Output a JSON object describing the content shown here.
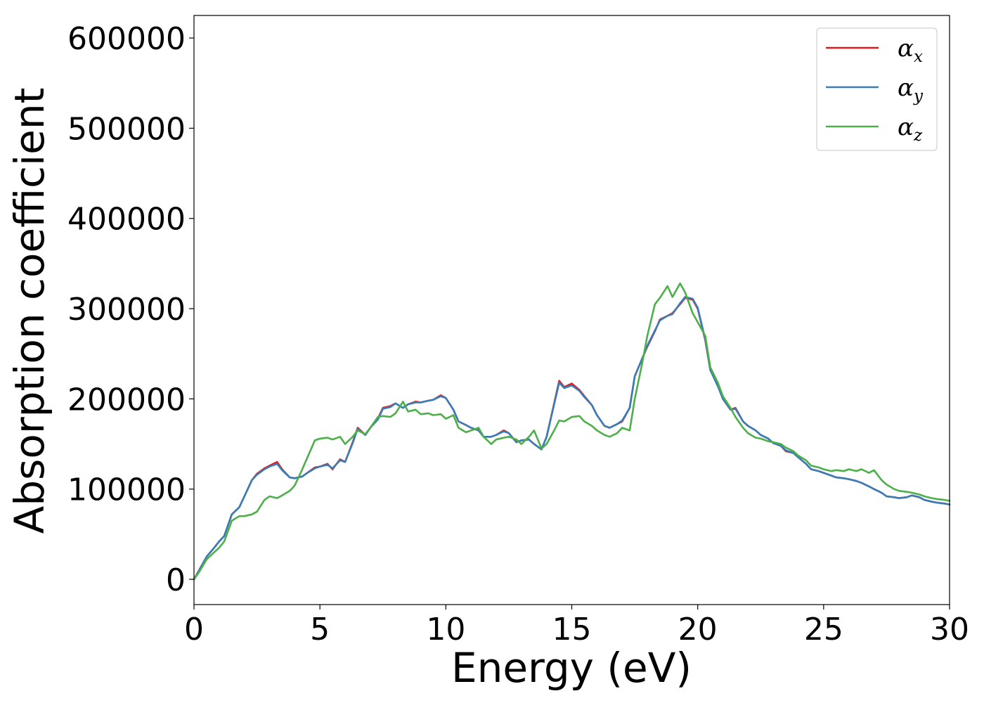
{
  "chart_data": {
    "type": "line",
    "xlabel": "Energy (eV)",
    "ylabel": "Absorption coefficient",
    "xlim": [
      0,
      30
    ],
    "ylim": [
      -28000,
      625000
    ],
    "xticks": [
      0,
      5,
      10,
      15,
      20,
      25,
      30
    ],
    "yticks": [
      0,
      100000,
      200000,
      300000,
      400000,
      500000,
      600000
    ],
    "grid": false,
    "legend_position": "top-right",
    "series": [
      {
        "name": "α_x",
        "symbol": "α",
        "subscript": "x",
        "color": "#e41a1c",
        "x": [
          0,
          0.2,
          0.5,
          0.8,
          1.0,
          1.2,
          1.5,
          1.8,
          2.0,
          2.3,
          2.5,
          2.8,
          3.0,
          3.3,
          3.5,
          3.8,
          4.0,
          4.3,
          4.5,
          4.8,
          5.0,
          5.3,
          5.5,
          5.8,
          6.0,
          6.3,
          6.5,
          6.8,
          7.0,
          7.3,
          7.5,
          7.8,
          8.0,
          8.3,
          8.5,
          8.8,
          9.0,
          9.3,
          9.5,
          9.8,
          10.0,
          10.3,
          10.5,
          10.8,
          11.0,
          11.3,
          11.5,
          11.8,
          12.0,
          12.3,
          12.5,
          12.8,
          13.0,
          13.3,
          13.5,
          13.8,
          14.0,
          14.3,
          14.5,
          14.7,
          15.0,
          15.3,
          15.5,
          15.8,
          16.0,
          16.3,
          16.5,
          16.8,
          17.0,
          17.3,
          17.5,
          17.8,
          18.0,
          18.3,
          18.5,
          18.8,
          19.0,
          19.3,
          19.5,
          19.8,
          20.0,
          20.3,
          20.5,
          20.8,
          21.0,
          21.3,
          21.5,
          21.8,
          22.0,
          22.3,
          22.5,
          22.8,
          23.0,
          23.3,
          23.5,
          23.8,
          24.0,
          24.3,
          24.5,
          24.8,
          25.0,
          25.3,
          25.5,
          25.8,
          26.0,
          26.3,
          26.5,
          26.8,
          27.0,
          27.3,
          27.5,
          27.8,
          28.0,
          28.3,
          28.5,
          28.8,
          29.0,
          29.3,
          29.5,
          29.8,
          30.0
        ],
        "y": [
          0,
          10000,
          25000,
          35000,
          42000,
          48000,
          72000,
          80000,
          92000,
          110000,
          117000,
          123000,
          126000,
          130000,
          122000,
          113000,
          112000,
          114000,
          118000,
          124000,
          125000,
          128000,
          122000,
          133000,
          130000,
          152000,
          168000,
          160000,
          168000,
          178000,
          190000,
          192000,
          195000,
          190000,
          194000,
          197000,
          196000,
          198000,
          199000,
          204000,
          201000,
          188000,
          175000,
          171000,
          168000,
          165000,
          158000,
          158000,
          160000,
          165000,
          162000,
          152000,
          154000,
          155000,
          150000,
          144000,
          158000,
          195000,
          220000,
          213000,
          217000,
          210000,
          203000,
          193000,
          182000,
          170000,
          168000,
          172000,
          175000,
          190000,
          225000,
          245000,
          258000,
          275000,
          288000,
          292000,
          295000,
          305000,
          312000,
          310000,
          300000,
          265000,
          232000,
          215000,
          200000,
          188000,
          190000,
          175000,
          170000,
          165000,
          160000,
          156000,
          151000,
          148000,
          142000,
          140000,
          135000,
          128000,
          122000,
          120000,
          118000,
          115000,
          113000,
          112000,
          111000,
          109000,
          107000,
          103000,
          100000,
          96000,
          92000,
          91000,
          90000,
          91000,
          93000,
          91000,
          88000,
          86000,
          85000,
          84000,
          83000
        ]
      },
      {
        "name": "α_y",
        "symbol": "α",
        "subscript": "y",
        "color": "#377eb8",
        "x": [
          0,
          0.2,
          0.5,
          0.8,
          1.0,
          1.2,
          1.5,
          1.8,
          2.0,
          2.3,
          2.5,
          2.8,
          3.0,
          3.3,
          3.5,
          3.8,
          4.0,
          4.3,
          4.5,
          4.8,
          5.0,
          5.3,
          5.5,
          5.8,
          6.0,
          6.3,
          6.5,
          6.8,
          7.0,
          7.3,
          7.5,
          7.8,
          8.0,
          8.3,
          8.5,
          8.8,
          9.0,
          9.3,
          9.5,
          9.8,
          10.0,
          10.3,
          10.5,
          10.8,
          11.0,
          11.3,
          11.5,
          11.8,
          12.0,
          12.3,
          12.5,
          12.8,
          13.0,
          13.3,
          13.5,
          13.8,
          14.0,
          14.3,
          14.5,
          14.7,
          15.0,
          15.3,
          15.5,
          15.8,
          16.0,
          16.3,
          16.5,
          16.8,
          17.0,
          17.3,
          17.5,
          17.8,
          18.0,
          18.3,
          18.5,
          18.8,
          19.0,
          19.3,
          19.5,
          19.8,
          20.0,
          20.3,
          20.5,
          20.8,
          21.0,
          21.3,
          21.5,
          21.8,
          22.0,
          22.3,
          22.5,
          22.8,
          23.0,
          23.3,
          23.5,
          23.8,
          24.0,
          24.3,
          24.5,
          24.8,
          25.0,
          25.3,
          25.5,
          25.8,
          26.0,
          26.3,
          26.5,
          26.8,
          27.0,
          27.3,
          27.5,
          27.8,
          28.0,
          28.3,
          28.5,
          28.8,
          29.0,
          29.3,
          29.5,
          29.8,
          30.0
        ],
        "y": [
          0,
          10000,
          25000,
          35000,
          42000,
          48000,
          72000,
          80000,
          92000,
          110000,
          116000,
          122000,
          125000,
          128000,
          121000,
          113000,
          112000,
          114000,
          118000,
          123000,
          125000,
          127000,
          123000,
          132000,
          130000,
          151000,
          167000,
          160000,
          168000,
          177000,
          189000,
          191000,
          195000,
          190000,
          194000,
          196000,
          196000,
          198000,
          199000,
          203000,
          201000,
          188000,
          175000,
          171000,
          168000,
          165000,
          158000,
          158000,
          160000,
          164000,
          162000,
          152000,
          154000,
          155000,
          150000,
          144000,
          158000,
          194000,
          218000,
          212000,
          215000,
          209000,
          202000,
          193000,
          182000,
          170000,
          168000,
          172000,
          176000,
          190000,
          225000,
          245000,
          259000,
          276000,
          287000,
          292000,
          294000,
          306000,
          313000,
          311000,
          301000,
          266000,
          232000,
          214000,
          200000,
          188000,
          189000,
          175000,
          170000,
          165000,
          160000,
          156000,
          151000,
          148000,
          143000,
          140000,
          135000,
          128000,
          122000,
          120000,
          118000,
          115000,
          113000,
          112000,
          111000,
          109000,
          107000,
          103000,
          100000,
          96000,
          92000,
          91000,
          90000,
          91000,
          93000,
          91000,
          88000,
          86000,
          85000,
          84000,
          83000
        ]
      },
      {
        "name": "α_z",
        "symbol": "α",
        "subscript": "z",
        "color": "#4daf4a",
        "x": [
          0,
          0.2,
          0.5,
          0.8,
          1.0,
          1.2,
          1.5,
          1.8,
          2.0,
          2.3,
          2.5,
          2.8,
          3.0,
          3.3,
          3.5,
          3.8,
          4.0,
          4.3,
          4.5,
          4.8,
          5.0,
          5.3,
          5.5,
          5.8,
          6.0,
          6.3,
          6.5,
          6.8,
          7.0,
          7.3,
          7.5,
          7.8,
          8.0,
          8.3,
          8.5,
          8.8,
          9.0,
          9.3,
          9.5,
          9.8,
          10.0,
          10.3,
          10.5,
          10.8,
          11.0,
          11.3,
          11.5,
          11.8,
          12.0,
          12.3,
          12.5,
          12.8,
          13.0,
          13.3,
          13.5,
          13.8,
          14.0,
          14.3,
          14.5,
          14.7,
          15.0,
          15.3,
          15.5,
          15.8,
          16.0,
          16.3,
          16.5,
          16.8,
          17.0,
          17.3,
          17.5,
          17.8,
          18.0,
          18.3,
          18.5,
          18.8,
          19.0,
          19.3,
          19.5,
          19.8,
          20.0,
          20.3,
          20.5,
          20.8,
          21.0,
          21.3,
          21.5,
          21.8,
          22.0,
          22.3,
          22.5,
          22.8,
          23.0,
          23.3,
          23.5,
          23.8,
          24.0,
          24.3,
          24.5,
          24.8,
          25.0,
          25.3,
          25.5,
          25.8,
          26.0,
          26.3,
          26.5,
          26.8,
          27.0,
          27.3,
          27.5,
          27.8,
          28.0,
          28.3,
          28.5,
          28.8,
          29.0,
          29.3,
          29.5,
          29.8,
          30.0
        ],
        "y": [
          0,
          8000,
          22000,
          30000,
          35000,
          42000,
          65000,
          70000,
          70000,
          72000,
          75000,
          88000,
          92000,
          90000,
          93000,
          98000,
          104000,
          122000,
          135000,
          154000,
          156000,
          157000,
          155000,
          158000,
          150000,
          158000,
          165000,
          161000,
          168000,
          180000,
          181000,
          180000,
          184000,
          197000,
          186000,
          188000,
          183000,
          184000,
          182000,
          183000,
          178000,
          182000,
          168000,
          163000,
          165000,
          168000,
          158000,
          150000,
          155000,
          157000,
          158000,
          155000,
          150000,
          158000,
          165000,
          145000,
          150000,
          165000,
          176000,
          175000,
          180000,
          181000,
          175000,
          170000,
          165000,
          160000,
          158000,
          162000,
          168000,
          165000,
          200000,
          240000,
          270000,
          305000,
          312000,
          325000,
          313000,
          328000,
          318000,
          295000,
          285000,
          270000,
          235000,
          218000,
          203000,
          190000,
          180000,
          168000,
          162000,
          157000,
          156000,
          153000,
          152000,
          150000,
          146000,
          142000,
          137000,
          132000,
          126000,
          124000,
          122000,
          120000,
          121000,
          120000,
          122000,
          120000,
          122000,
          118000,
          121000,
          110000,
          105000,
          100000,
          98000,
          97000,
          96000,
          94000,
          92000,
          90000,
          89000,
          88000,
          87000
        ]
      }
    ]
  }
}
